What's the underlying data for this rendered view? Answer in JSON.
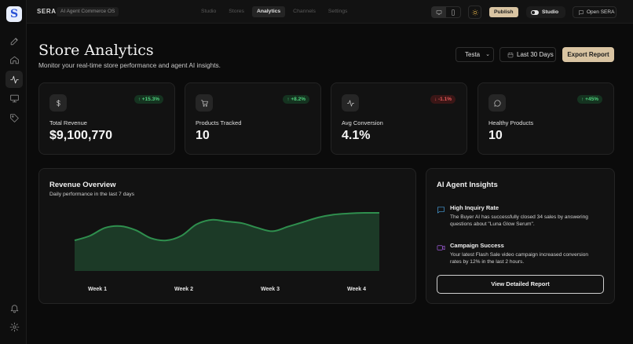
{
  "brand": {
    "name": "SERA",
    "tag": "AI Agent Commerce OS"
  },
  "nav": [
    {
      "label": "Studio"
    },
    {
      "label": "Stores"
    },
    {
      "label": "Analytics"
    },
    {
      "label": "Channels"
    },
    {
      "label": "Settings"
    }
  ],
  "topbar": {
    "publish": "Publish",
    "studio": "Studio",
    "open": "Open SERA"
  },
  "page": {
    "title": "Store Analytics",
    "subtitle": "Monitor your real-time store performance and agent AI insights.",
    "store": "Testa",
    "date_range": "Last 30 Days",
    "export": "Export Report"
  },
  "kpis": [
    {
      "label": "Total Revenue",
      "value": "$9,100,770",
      "change": "↑ +15.3%",
      "trend": "up",
      "icon": "dollar-icon"
    },
    {
      "label": "Products Tracked",
      "value": "10",
      "change": "↑ +8.2%",
      "trend": "up",
      "icon": "cart-icon"
    },
    {
      "label": "Avg Conversion",
      "value": "4.1%",
      "change": "↓ -1.1%",
      "trend": "down",
      "icon": "activity-icon"
    },
    {
      "label": "Healthy Products",
      "value": "10",
      "change": "↑ +45%",
      "trend": "up",
      "icon": "message-icon"
    }
  ],
  "revenue": {
    "title": "Revenue Overview",
    "subtitle": "Daily performance in the last 7 days"
  },
  "chart_data": {
    "type": "area",
    "categories": [
      "Week 1",
      "Week 2",
      "Week 3",
      "Week 4"
    ],
    "x": [
      0,
      0.5,
      1,
      1.5,
      2,
      2.5,
      3,
      3.5,
      4,
      4.5,
      5,
      5.5,
      6,
      6.5,
      7,
      7.5,
      8,
      8.5,
      9,
      9.5,
      10
    ],
    "values": [
      30,
      38,
      52,
      55,
      48,
      34,
      30,
      38,
      58,
      66,
      63,
      60,
      52,
      46,
      54,
      62,
      70,
      75,
      77,
      78,
      78
    ],
    "ylim": [
      0,
      100
    ],
    "grid": false,
    "color": "#2f8f4e"
  },
  "insights": {
    "title": "AI Agent Insights",
    "items": [
      {
        "title": "High Inquiry Rate",
        "text": "The Buyer AI has successfully closed 34 sales by answering questions about \"Luna Glow Serum\".",
        "icon": "chat-icon",
        "color": "#4aa3e0"
      },
      {
        "title": "Campaign Success",
        "text": "Your latest Flash Sale video campaign increased conversion rates by 12% in the last 2 hours.",
        "icon": "video-icon",
        "color": "#a35de0"
      }
    ],
    "button": "View Detailed Report"
  }
}
